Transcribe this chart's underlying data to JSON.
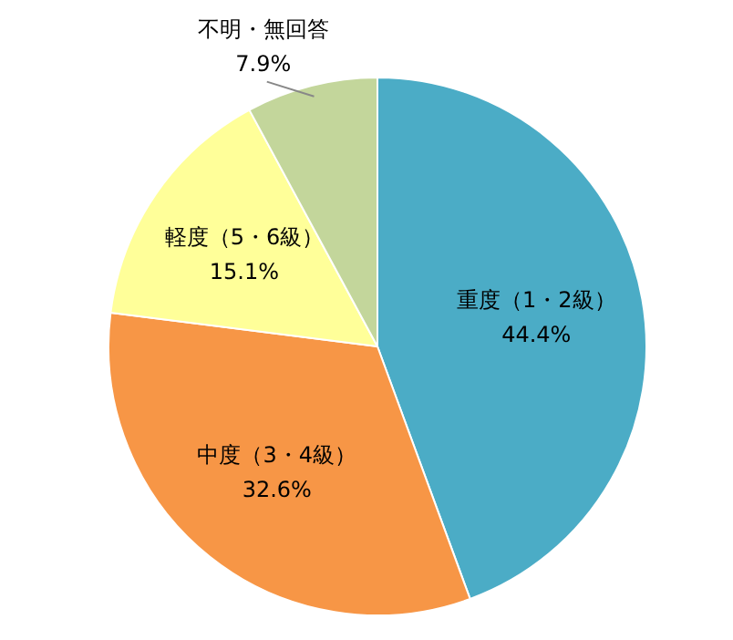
{
  "chart_data": {
    "type": "pie",
    "categories": [
      "重度（1・2級）",
      "中度（3・4級）",
      "軽度（5・6級）",
      "不明・無回答"
    ],
    "values": [
      44.4,
      32.6,
      15.1,
      7.9
    ],
    "colors": [
      "#4bacc6",
      "#f79646",
      "#ffff99",
      "#c3d69b"
    ],
    "value_labels": [
      "44.4%",
      "32.6%",
      "15.1%",
      "7.9%"
    ],
    "legend": false
  }
}
